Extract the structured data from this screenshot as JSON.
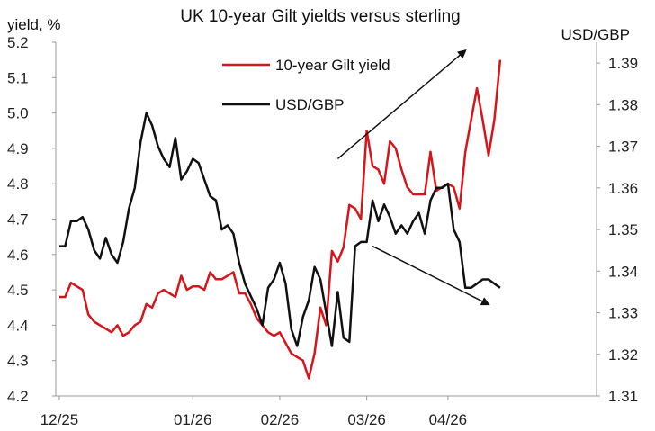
{
  "chart_data": {
    "type": "line",
    "title": "UK 10-year Gilt yields versus sterling",
    "y_left_label": "yield, %",
    "y_right_label": "USD/GBP",
    "x_tick_labels": [
      "12/25",
      "01/26",
      "02/26",
      "03/26",
      "04/26"
    ],
    "y_left_ticks": [
      "4.2",
      "4.3",
      "4.4",
      "4.5",
      "4.6",
      "4.7",
      "4.8",
      "4.9",
      "5.0",
      "5.1",
      "5.2"
    ],
    "y_right_ticks": [
      "1.31",
      "1.32",
      "1.33",
      "1.34",
      "1.35",
      "1.36",
      "1.37",
      "1.38",
      "1.39"
    ],
    "y_left_range": [
      4.2,
      5.2
    ],
    "y_right_range": [
      1.31,
      1.395
    ],
    "x_range": [
      0,
      92
    ],
    "x_tick_positions": [
      0,
      23,
      38,
      53,
      67
    ],
    "legend_position": "top-center",
    "grid": false,
    "series": [
      {
        "name": "10-year Gilt yield",
        "color": "#d7141a",
        "axis": "left",
        "x": [
          0,
          1,
          2,
          3,
          4,
          5,
          6,
          7,
          8,
          9,
          10,
          11,
          12,
          13,
          14,
          15,
          16,
          17,
          18,
          19,
          20,
          21,
          22,
          23,
          24,
          25,
          26,
          27,
          28,
          29,
          30,
          31,
          32,
          33,
          34,
          35,
          36,
          37,
          38,
          39,
          40,
          41,
          42,
          43,
          44,
          45,
          46,
          47,
          48,
          49,
          50,
          51,
          52,
          53,
          54,
          55,
          56,
          57,
          58,
          59,
          60,
          61,
          62,
          63,
          64,
          65,
          66,
          67,
          68,
          69,
          70,
          71,
          72,
          73,
          74,
          75,
          76
        ],
        "values": [
          4.48,
          4.48,
          4.52,
          4.51,
          4.5,
          4.43,
          4.41,
          4.4,
          4.39,
          4.38,
          4.4,
          4.37,
          4.38,
          4.4,
          4.41,
          4.46,
          4.45,
          4.49,
          4.5,
          4.49,
          4.48,
          4.54,
          4.5,
          4.51,
          4.51,
          4.5,
          4.55,
          4.53,
          4.53,
          4.54,
          4.55,
          4.49,
          4.49,
          4.46,
          4.42,
          4.4,
          4.38,
          4.37,
          4.38,
          4.35,
          4.32,
          4.31,
          4.3,
          4.25,
          4.32,
          4.45,
          4.4,
          4.61,
          4.58,
          4.62,
          4.74,
          4.73,
          4.7,
          4.95,
          4.85,
          4.84,
          4.8,
          4.92,
          4.9,
          4.84,
          4.79,
          4.77,
          4.77,
          4.77,
          4.89,
          4.78,
          4.79,
          4.8,
          4.79,
          4.73,
          4.89,
          4.98,
          5.07,
          4.98,
          4.88,
          4.98,
          5.15
        ]
      },
      {
        "name": "USD/GBP",
        "color": "#111111",
        "axis": "right",
        "x": [
          0,
          1,
          2,
          3,
          4,
          5,
          6,
          7,
          8,
          9,
          10,
          11,
          12,
          13,
          14,
          15,
          16,
          17,
          18,
          19,
          20,
          21,
          22,
          23,
          24,
          25,
          26,
          27,
          28,
          29,
          30,
          31,
          32,
          33,
          34,
          35,
          36,
          37,
          38,
          39,
          40,
          41,
          42,
          43,
          44,
          45,
          46,
          47,
          48,
          49,
          50,
          51,
          52,
          53,
          54,
          55,
          56,
          57,
          58,
          59,
          60,
          61,
          62,
          63,
          64,
          65,
          66,
          67,
          68,
          69,
          70,
          71,
          72,
          73,
          74,
          75,
          76
        ],
        "values": [
          1.346,
          1.346,
          1.352,
          1.352,
          1.353,
          1.35,
          1.345,
          1.343,
          1.348,
          1.344,
          1.342,
          1.347,
          1.355,
          1.36,
          1.371,
          1.378,
          1.375,
          1.37,
          1.367,
          1.365,
          1.372,
          1.362,
          1.364,
          1.367,
          1.366,
          1.362,
          1.358,
          1.357,
          1.35,
          1.351,
          1.349,
          1.342,
          1.337,
          1.334,
          1.331,
          1.327,
          1.336,
          1.338,
          1.342,
          1.337,
          1.326,
          1.322,
          1.329,
          1.333,
          1.341,
          1.338,
          1.33,
          1.322,
          1.335,
          1.324,
          1.323,
          1.346,
          1.347,
          1.347,
          1.357,
          1.352,
          1.356,
          1.353,
          1.349,
          1.351,
          1.349,
          1.352,
          1.354,
          1.349,
          1.357,
          1.36,
          1.36,
          1.361,
          1.35,
          1.347,
          1.336,
          1.336,
          1.337,
          1.338,
          1.338,
          1.337,
          1.336
        ]
      }
    ],
    "arrows": [
      {
        "from": [
          48,
          1.367
        ],
        "to": [
          70,
          1.393
        ]
      },
      {
        "from": [
          54,
          1.346
        ],
        "to": [
          74,
          1.332
        ]
      }
    ]
  }
}
